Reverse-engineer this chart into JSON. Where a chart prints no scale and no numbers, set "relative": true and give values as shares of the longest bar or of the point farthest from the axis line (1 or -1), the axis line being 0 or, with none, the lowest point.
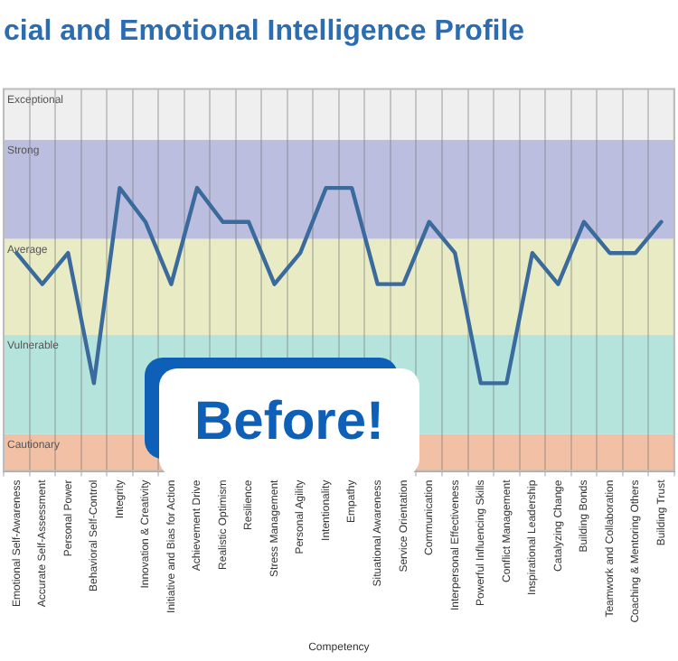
{
  "chart_data": {
    "type": "line",
    "title": "cial and Emotional Intelligence Profile",
    "xlabel": "Competency",
    "relative": true,
    "grid": "x",
    "legend": false,
    "marker": "none",
    "line_style": "solid",
    "categories": [
      "Emotional Self-Awareness",
      "Accurate Self-Assessment",
      "Personal Power",
      "Behavioral Self-Control",
      "Integrity",
      "Innovation & Creativity",
      "Initiative and Bias for Action",
      "Achievement Drive",
      "Realistic Optimism",
      "Resilience",
      "Stress Management",
      "Personal Agility",
      "Intentionality",
      "Empathy",
      "Situational Awareness",
      "Service Orientation",
      "Communication",
      "Interpersonal Effectiveness",
      "Powerful Influencing Skills",
      "Conflict Management",
      "Inspirational Leadership",
      "Catalyzing Change",
      "Building Bonds",
      "Teamwork and Collaboration",
      "Coaching & Mentoring Others",
      "Building Trust"
    ],
    "series": [
      {
        "color": "#3b6b9c",
        "values": [
          0.77,
          0.66,
          0.77,
          0.31,
          1,
          0.88,
          0.66,
          1,
          0.88,
          0.88,
          0.66,
          0.77,
          1,
          1,
          0.66,
          0.66,
          0.88,
          0.77,
          0.31,
          0.31,
          0.77,
          0.66,
          0.88,
          0.77,
          0.77,
          0.88
        ]
      }
    ],
    "bands": [
      {
        "axis": "y",
        "from": 0,
        "to": 0.13,
        "label": "Cautionary",
        "color": "#f2c0a4"
      },
      {
        "axis": "y",
        "from": 0.13,
        "to": 0.48,
        "label": "Vulnerable",
        "color": "#b4e4dc"
      },
      {
        "axis": "y",
        "from": 0.48,
        "to": 0.82,
        "label": "Average",
        "color": "#e8ebc4"
      },
      {
        "axis": "y",
        "from": 0.82,
        "to": 1.17,
        "label": "Strong",
        "color": "#bcbedf"
      },
      {
        "axis": "y",
        "from": 1.17,
        "to": 1.35,
        "label": "Exceptional",
        "color": "#efefef"
      }
    ],
    "annotations": [
      "Before!"
    ]
  }
}
